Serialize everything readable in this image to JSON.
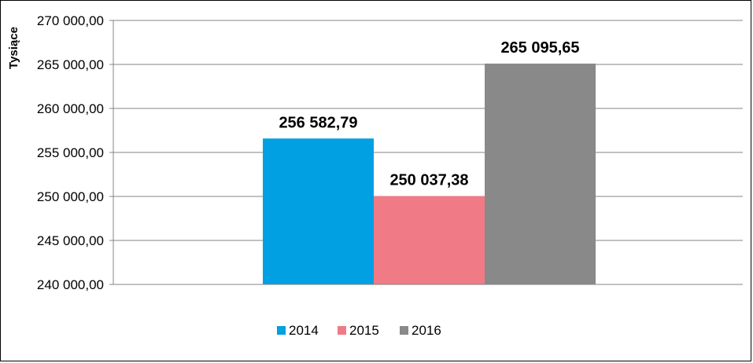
{
  "chart_data": {
    "type": "bar",
    "title": "",
    "ylabel": "Tysiące",
    "xlabel": "",
    "categories": [
      ""
    ],
    "series": [
      {
        "name": "2014",
        "values": [
          256582.79
        ],
        "label": "256 582,79",
        "color": "#00a0e3"
      },
      {
        "name": "2015",
        "values": [
          250037.38
        ],
        "label": "250 037,38",
        "color": "#f07b86"
      },
      {
        "name": "2016",
        "values": [
          265095.65
        ],
        "label": "265 095,65",
        "color": "#898989"
      }
    ],
    "ylim": [
      240000,
      270000
    ],
    "yticks": [
      240000,
      245000,
      250000,
      255000,
      260000,
      265000,
      270000
    ],
    "ytick_labels": [
      "240 000,00",
      "245 000,00",
      "250 000,00",
      "255 000,00",
      "260 000,00",
      "265 000,00",
      "270 000,00"
    ],
    "grid": true,
    "legend": "bottom"
  }
}
